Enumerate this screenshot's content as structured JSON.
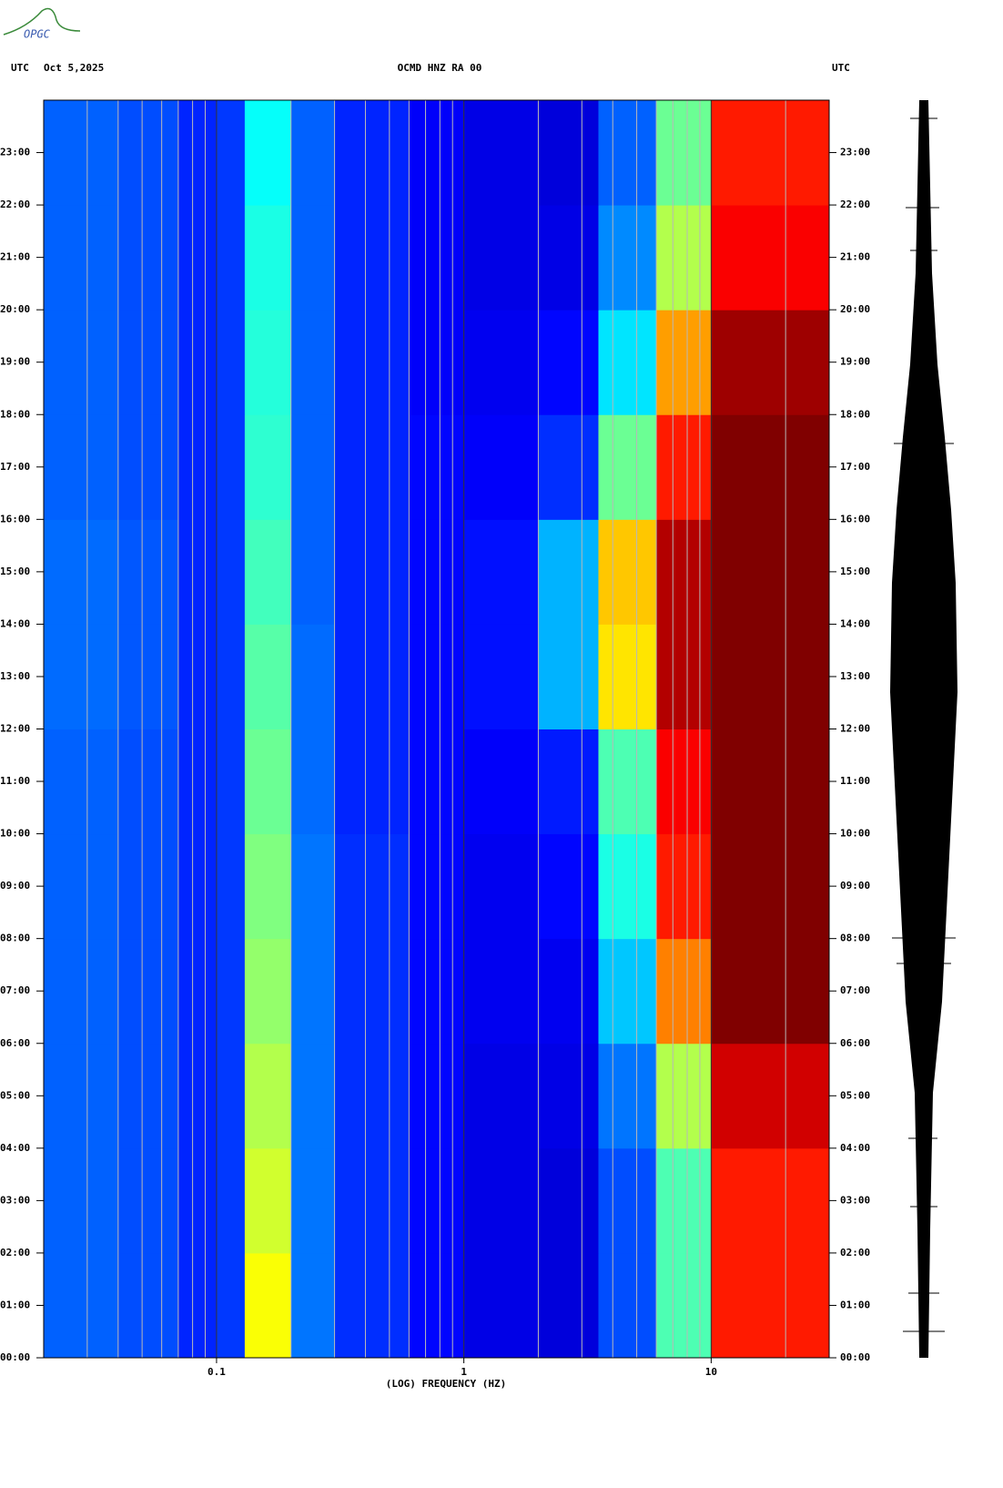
{
  "logo": "OPGC",
  "chart_data": {
    "type": "heatmap",
    "title": "OCMD HNZ RA 00",
    "left_label": "UTC",
    "date": "Oct 5,2025",
    "right_label": "UTC",
    "x_label": "(LOG) FREQUENCY (HZ)",
    "xscale": "log",
    "xlim": [
      0.02,
      30
    ],
    "xticks": [
      0.1,
      1,
      10
    ],
    "xminor": [
      0.03,
      0.04,
      0.05,
      0.06,
      0.07,
      0.08,
      0.09,
      0.2,
      0.3,
      0.4,
      0.5,
      0.6,
      0.7,
      0.8,
      0.9,
      2,
      3,
      4,
      5,
      6,
      7,
      8,
      9,
      20
    ],
    "ylim": [
      0,
      24
    ],
    "yticks": [
      {
        "value": 0,
        "label": "00:00"
      },
      {
        "value": 1,
        "label": "01:00"
      },
      {
        "value": 2,
        "label": "02:00"
      },
      {
        "value": 3,
        "label": "03:00"
      },
      {
        "value": 4,
        "label": "04:00"
      },
      {
        "value": 5,
        "label": "05:00"
      },
      {
        "value": 6,
        "label": "06:00"
      },
      {
        "value": 7,
        "label": "07:00"
      },
      {
        "value": 8,
        "label": "08:00"
      },
      {
        "value": 9,
        "label": "09:00"
      },
      {
        "value": 10,
        "label": "10:00"
      },
      {
        "value": 11,
        "label": "11:00"
      },
      {
        "value": 12,
        "label": "12:00"
      },
      {
        "value": 13,
        "label": "13:00"
      },
      {
        "value": 14,
        "label": "14:00"
      },
      {
        "value": 15,
        "label": "15:00"
      },
      {
        "value": 16,
        "label": "16:00"
      },
      {
        "value": 17,
        "label": "17:00"
      },
      {
        "value": 18,
        "label": "18:00"
      },
      {
        "value": 19,
        "label": "19:00"
      },
      {
        "value": 20,
        "label": "20:00"
      },
      {
        "value": 21,
        "label": "21:00"
      },
      {
        "value": 22,
        "label": "22:00"
      },
      {
        "value": 23,
        "label": "23:00"
      }
    ],
    "x_edges": [
      0.02,
      0.04,
      0.07,
      0.1,
      0.13,
      0.2,
      0.3,
      0.6,
      1,
      2,
      3.5,
      6,
      10,
      30
    ],
    "y_edges": [
      0,
      2,
      4,
      6,
      8,
      10,
      12,
      14,
      16,
      18,
      20,
      22,
      24
    ],
    "z": [
      [
        0.22,
        0.2,
        0.16,
        0.18,
        0.62,
        0.24,
        0.17,
        0.13,
        0.1,
        0.09,
        0.2,
        0.45,
        0.85
      ],
      [
        0.22,
        0.2,
        0.16,
        0.18,
        0.58,
        0.24,
        0.17,
        0.13,
        0.1,
        0.09,
        0.2,
        0.45,
        0.85
      ],
      [
        0.22,
        0.2,
        0.16,
        0.18,
        0.55,
        0.24,
        0.17,
        0.13,
        0.1,
        0.1,
        0.24,
        0.55,
        0.92
      ],
      [
        0.22,
        0.2,
        0.16,
        0.18,
        0.52,
        0.24,
        0.17,
        0.13,
        0.11,
        0.11,
        0.32,
        0.75,
        1
      ],
      [
        0.22,
        0.2,
        0.16,
        0.18,
        0.5,
        0.24,
        0.17,
        0.13,
        0.11,
        0.13,
        0.4,
        0.85,
        1
      ],
      [
        0.22,
        0.2,
        0.16,
        0.18,
        0.48,
        0.23,
        0.16,
        0.13,
        0.12,
        0.15,
        0.45,
        0.88,
        1
      ],
      [
        0.23,
        0.21,
        0.16,
        0.18,
        0.46,
        0.23,
        0.16,
        0.13,
        0.14,
        0.3,
        0.65,
        0.95,
        1
      ],
      [
        0.23,
        0.21,
        0.16,
        0.18,
        0.44,
        0.22,
        0.16,
        0.13,
        0.14,
        0.3,
        0.68,
        0.95,
        1
      ],
      [
        0.22,
        0.2,
        0.16,
        0.18,
        0.42,
        0.22,
        0.16,
        0.13,
        0.12,
        0.17,
        0.48,
        0.85,
        1
      ],
      [
        0.22,
        0.2,
        0.16,
        0.18,
        0.41,
        0.22,
        0.16,
        0.12,
        0.11,
        0.13,
        0.35,
        0.72,
        0.97
      ],
      [
        0.22,
        0.2,
        0.16,
        0.18,
        0.4,
        0.22,
        0.16,
        0.12,
        0.1,
        0.1,
        0.26,
        0.55,
        0.88
      ],
      [
        0.22,
        0.2,
        0.16,
        0.18,
        0.38,
        0.22,
        0.16,
        0.12,
        0.1,
        0.09,
        0.22,
        0.48,
        0.85
      ]
    ]
  }
}
